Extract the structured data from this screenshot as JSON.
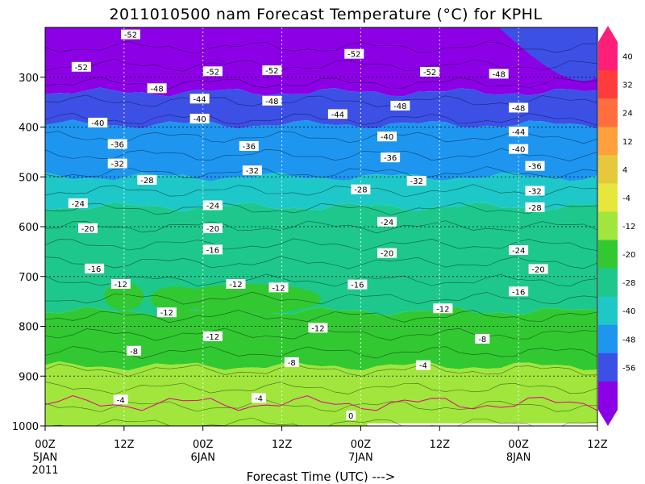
{
  "chart_data": {
    "type": "heatmap",
    "title": "2011010500 nam Forecast Temperature (°C) for KPHL",
    "xlabel": "Forecast Time (UTC) --->",
    "ylabel": "",
    "x_ticks": [
      {
        "hour": 0,
        "label": "00Z",
        "sub": "5JAN",
        "sub2": "2011"
      },
      {
        "hour": 12,
        "label": "12Z",
        "sub": "",
        "sub2": ""
      },
      {
        "hour": 24,
        "label": "00Z",
        "sub": "6JAN",
        "sub2": ""
      },
      {
        "hour": 36,
        "label": "12Z",
        "sub": "",
        "sub2": ""
      },
      {
        "hour": 48,
        "label": "00Z",
        "sub": "7JAN",
        "sub2": ""
      },
      {
        "hour": 60,
        "label": "12Z",
        "sub": "",
        "sub2": ""
      },
      {
        "hour": 72,
        "label": "00Z",
        "sub": "8JAN",
        "sub2": ""
      },
      {
        "hour": 84,
        "label": "12Z",
        "sub": "",
        "sub2": ""
      }
    ],
    "y_ticks": [
      300,
      400,
      500,
      600,
      700,
      800,
      900,
      1000
    ],
    "xlim": [
      0,
      84
    ],
    "ylim": [
      1000,
      200
    ],
    "colorbar": {
      "labels": [
        40,
        32,
        24,
        12,
        4,
        -4,
        -12,
        -20,
        -28,
        -40,
        -48,
        -56
      ],
      "colors": [
        "#ff1e78",
        "#ff3c3c",
        "#ff6e3c",
        "#ffa03c",
        "#e6c83c",
        "#e6e63c",
        "#a0e63c",
        "#32c832",
        "#1ec88c",
        "#1ec8c8",
        "#1e96f0",
        "#3c50e6",
        "#8c00e6"
      ]
    },
    "bands": [
      {
        "color": "#8c00e6",
        "top": 200,
        "bottom": 330
      },
      {
        "color": "#3c50e6",
        "top": 330,
        "bottom": 395
      },
      {
        "color": "#1e96f0",
        "top": 395,
        "bottom": 500
      },
      {
        "color": "#1ec8c8",
        "top": 500,
        "bottom": 560
      },
      {
        "color": "#1ec88c",
        "top": 560,
        "bottom": 770
      },
      {
        "color": "#32c832",
        "top": 770,
        "bottom": 880
      },
      {
        "color": "#a0e63c",
        "top": 880,
        "bottom": 1000
      }
    ],
    "contour_labels": [
      {
        "t": 13,
        "p": 214,
        "v": "-52"
      },
      {
        "t": 47,
        "p": 253,
        "v": "-52"
      },
      {
        "t": 34.5,
        "p": 286,
        "v": "-52"
      },
      {
        "t": 5.5,
        "p": 279,
        "v": "-52"
      },
      {
        "t": 25.5,
        "p": 288,
        "v": "-52"
      },
      {
        "t": 58.5,
        "p": 289,
        "v": "-52"
      },
      {
        "t": 69,
        "p": 293,
        "v": "-48"
      },
      {
        "t": 17,
        "p": 322,
        "v": "-48"
      },
      {
        "t": 23.5,
        "p": 343,
        "v": "-44"
      },
      {
        "t": 34.5,
        "p": 347,
        "v": "-48"
      },
      {
        "t": 54,
        "p": 357,
        "v": "-48"
      },
      {
        "t": 72,
        "p": 361,
        "v": "-48"
      },
      {
        "t": 44.5,
        "p": 374,
        "v": "-44"
      },
      {
        "t": 8,
        "p": 391,
        "v": "-40"
      },
      {
        "t": 23.5,
        "p": 383,
        "v": "-40"
      },
      {
        "t": 72,
        "p": 409,
        "v": "-44"
      },
      {
        "t": 52,
        "p": 419,
        "v": "-40"
      },
      {
        "t": 11,
        "p": 434,
        "v": "-36"
      },
      {
        "t": 31,
        "p": 438,
        "v": "-36"
      },
      {
        "t": 72,
        "p": 444,
        "v": "-40"
      },
      {
        "t": 52.5,
        "p": 461,
        "v": "-36"
      },
      {
        "t": 11,
        "p": 473,
        "v": "-32"
      },
      {
        "t": 74.5,
        "p": 478,
        "v": "-36"
      },
      {
        "t": 31.5,
        "p": 487,
        "v": "-32"
      },
      {
        "t": 15.5,
        "p": 506,
        "v": "-28"
      },
      {
        "t": 56.5,
        "p": 508,
        "v": "-32"
      },
      {
        "t": 48,
        "p": 525,
        "v": "-28"
      },
      {
        "t": 74.5,
        "p": 528,
        "v": "-32"
      },
      {
        "t": 5,
        "p": 553,
        "v": "-24"
      },
      {
        "t": 25.5,
        "p": 557,
        "v": "-24"
      },
      {
        "t": 74.5,
        "p": 561,
        "v": "-28"
      },
      {
        "t": 52,
        "p": 590,
        "v": "-24"
      },
      {
        "t": 6.5,
        "p": 603,
        "v": "-20"
      },
      {
        "t": 25.5,
        "p": 603,
        "v": "-20"
      },
      {
        "t": 72,
        "p": 647,
        "v": "-24"
      },
      {
        "t": 25.5,
        "p": 646,
        "v": "-16"
      },
      {
        "t": 52,
        "p": 653,
        "v": "-20"
      },
      {
        "t": 7.5,
        "p": 684,
        "v": "-16"
      },
      {
        "t": 75,
        "p": 685,
        "v": "-20"
      },
      {
        "t": 11.5,
        "p": 715,
        "v": "-12"
      },
      {
        "t": 29,
        "p": 715,
        "v": "-12"
      },
      {
        "t": 35.5,
        "p": 722,
        "v": "-12"
      },
      {
        "t": 47.5,
        "p": 716,
        "v": "-16"
      },
      {
        "t": 72,
        "p": 730,
        "v": "-16"
      },
      {
        "t": 18.5,
        "p": 772,
        "v": "-12"
      },
      {
        "t": 60.5,
        "p": 764,
        "v": "-12"
      },
      {
        "t": 41.5,
        "p": 803,
        "v": "-12"
      },
      {
        "t": 25.5,
        "p": 820,
        "v": "-12"
      },
      {
        "t": 66.5,
        "p": 825,
        "v": "-8"
      },
      {
        "t": 13.5,
        "p": 849,
        "v": "-8"
      },
      {
        "t": 37.5,
        "p": 872,
        "v": "-8"
      },
      {
        "t": 57.5,
        "p": 878,
        "v": "-4"
      },
      {
        "t": 11.5,
        "p": 947,
        "v": "-4"
      },
      {
        "t": 32.5,
        "p": 944,
        "v": "-4"
      },
      {
        "t": 46.5,
        "p": 979,
        "v": "0"
      }
    ]
  }
}
